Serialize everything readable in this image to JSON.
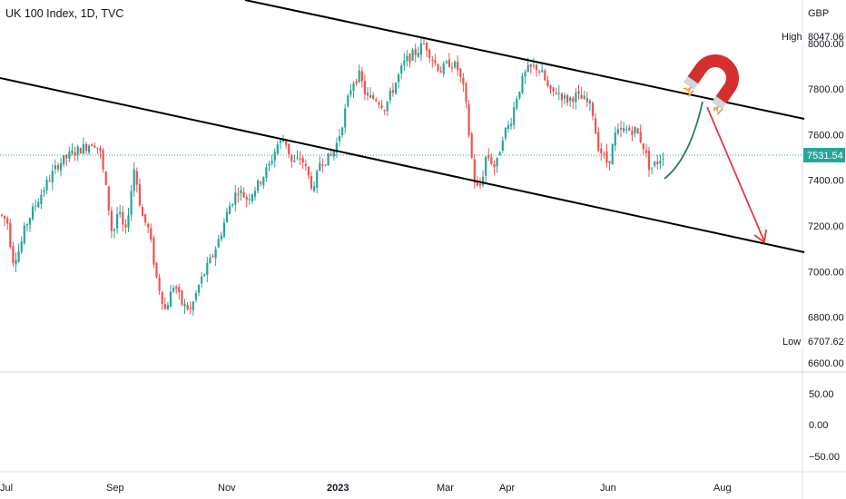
{
  "chart_title": "UK 100 Index, 1D, TVC",
  "currency": "GBP",
  "colors": {
    "up": "#26a69a",
    "down": "#ef5350",
    "trendline": "#000000",
    "projection_up": "#2e7d5b",
    "projection_down": "#e53945",
    "current_price_bg": "#26a69a",
    "magnet_red": "#d32f2f"
  },
  "price_axis": {
    "ticks": [
      "8000.00",
      "7800.00",
      "7600.00",
      "7400.00",
      "7200.00",
      "7000.00",
      "6800.00",
      "6600.00"
    ],
    "range": [
      6560,
      8190
    ]
  },
  "indicator_axis": {
    "ticks": [
      "50.00",
      "0.00",
      "−50.00"
    ]
  },
  "time_axis": {
    "labels": [
      "Jul",
      "Sep",
      "Nov",
      "2023",
      "Mar",
      "Apr",
      "Jun",
      "Aug"
    ]
  },
  "high": {
    "label": "High",
    "value": "8047.06"
  },
  "low": {
    "label": "Low",
    "value": "6707.62"
  },
  "current_price": "7531.54",
  "annotations": {
    "magnet_icon": "magnet-icon",
    "projection": "curved arrow up to upper channel line, then straight arrow down to lower channel line"
  },
  "chart_data": {
    "type": "candlestick",
    "title": "UK 100 Index, 1D, TVC",
    "y_unit": "GBP",
    "ylim": [
      6560,
      8190
    ],
    "x_labels": [
      "Jul",
      "Sep",
      "Nov",
      "2023",
      "Mar",
      "Apr",
      "Jun",
      "Aug"
    ],
    "close_path": [
      [
        0,
        7250
      ],
      [
        8,
        7220
      ],
      [
        14,
        7050
      ],
      [
        22,
        7100
      ],
      [
        28,
        7200
      ],
      [
        40,
        7300
      ],
      [
        52,
        7390
      ],
      [
        64,
        7470
      ],
      [
        80,
        7520
      ],
      [
        95,
        7550
      ],
      [
        103,
        7570
      ],
      [
        110,
        7530
      ],
      [
        118,
        7330
      ],
      [
        124,
        7150
      ],
      [
        130,
        7270
      ],
      [
        138,
        7160
      ],
      [
        148,
        7460
      ],
      [
        156,
        7250
      ],
      [
        164,
        7180
      ],
      [
        172,
        6980
      ],
      [
        182,
        6830
      ],
      [
        192,
        6950
      ],
      [
        200,
        6860
      ],
      [
        210,
        6830
      ],
      [
        220,
        6950
      ],
      [
        232,
        7050
      ],
      [
        242,
        7150
      ],
      [
        252,
        7280
      ],
      [
        262,
        7360
      ],
      [
        272,
        7320
      ],
      [
        284,
        7380
      ],
      [
        296,
        7460
      ],
      [
        306,
        7560
      ],
      [
        314,
        7580
      ],
      [
        322,
        7470
      ],
      [
        332,
        7500
      ],
      [
        346,
        7350
      ],
      [
        352,
        7480
      ],
      [
        364,
        7500
      ],
      [
        372,
        7570
      ],
      [
        380,
        7700
      ],
      [
        388,
        7830
      ],
      [
        396,
        7860
      ],
      [
        404,
        7760
      ],
      [
        414,
        7760
      ],
      [
        424,
        7720
      ],
      [
        434,
        7810
      ],
      [
        446,
        7920
      ],
      [
        458,
        7960
      ],
      [
        468,
        8000
      ],
      [
        478,
        7920
      ],
      [
        486,
        7880
      ],
      [
        496,
        7920
      ],
      [
        504,
        7890
      ],
      [
        512,
        7780
      ],
      [
        518,
        7550
      ],
      [
        524,
        7360
      ],
      [
        530,
        7380
      ],
      [
        536,
        7520
      ],
      [
        546,
        7450
      ],
      [
        554,
        7600
      ],
      [
        562,
        7650
      ],
      [
        570,
        7780
      ],
      [
        580,
        7880
      ],
      [
        590,
        7900
      ],
      [
        598,
        7860
      ],
      [
        606,
        7780
      ],
      [
        614,
        7790
      ],
      [
        624,
        7750
      ],
      [
        634,
        7770
      ],
      [
        644,
        7750
      ],
      [
        652,
        7720
      ],
      [
        658,
        7560
      ],
      [
        664,
        7510
      ],
      [
        670,
        7470
      ],
      [
        678,
        7600
      ],
      [
        688,
        7620
      ],
      [
        700,
        7620
      ],
      [
        708,
        7560
      ],
      [
        716,
        7450
      ],
      [
        724,
        7480
      ],
      [
        732,
        7520
      ]
    ],
    "indicator_panel": {
      "ticks": [
        50.0,
        0.0,
        -50.0
      ]
    }
  }
}
